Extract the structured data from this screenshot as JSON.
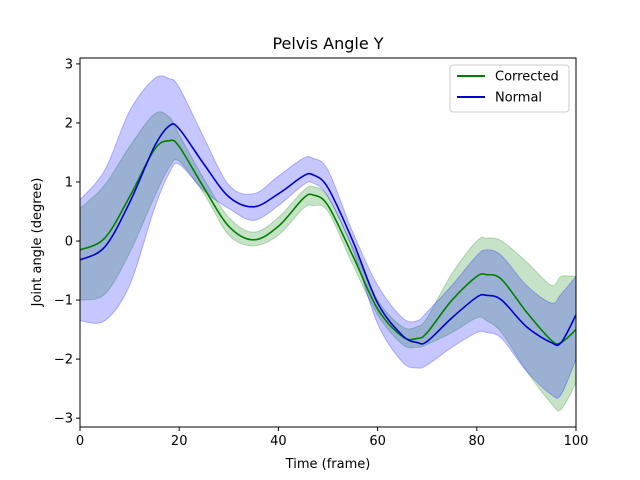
{
  "chart_data": {
    "type": "line",
    "title": "Pelvis Angle Y",
    "xlabel": "Time (frame)",
    "ylabel": "Joint angle (degree)",
    "xlim": [
      0,
      100
    ],
    "ylim": [
      -3.15,
      3.1
    ],
    "xticks": [
      0,
      20,
      40,
      60,
      80,
      100
    ],
    "yticks": [
      -3,
      -2,
      -1,
      0,
      1,
      2,
      3
    ],
    "grid": false,
    "legend_position": "top-right",
    "x": [
      0,
      5,
      10,
      15,
      18,
      20,
      25,
      30,
      35,
      40,
      45,
      47,
      50,
      55,
      60,
      65,
      68,
      70,
      75,
      80,
      82,
      85,
      90,
      95,
      97,
      100
    ],
    "series": [
      {
        "name": "Corrected",
        "color": "#008000",
        "band_color": "#008000",
        "mean": [
          -0.15,
          0.05,
          0.75,
          1.55,
          1.7,
          1.6,
          0.9,
          0.25,
          0.02,
          0.25,
          0.72,
          0.78,
          0.6,
          -0.25,
          -1.15,
          -1.62,
          -1.65,
          -1.55,
          -1.0,
          -0.6,
          -0.57,
          -0.65,
          -1.2,
          -1.68,
          -1.72,
          -1.5
        ],
        "lower": [
          -1.0,
          -0.9,
          -0.2,
          0.75,
          1.25,
          1.35,
          0.8,
          0.1,
          -0.08,
          0.1,
          0.55,
          0.6,
          0.5,
          -0.4,
          -1.25,
          -1.75,
          -1.8,
          -1.75,
          -1.55,
          -1.3,
          -1.35,
          -1.55,
          -2.2,
          -2.75,
          -2.85,
          -2.4
        ],
        "upper": [
          0.55,
          0.95,
          1.6,
          2.15,
          2.1,
          1.8,
          1.05,
          0.4,
          0.15,
          0.4,
          0.85,
          0.92,
          0.75,
          -0.1,
          -1.0,
          -1.45,
          -1.45,
          -1.3,
          -0.55,
          0.0,
          0.05,
          0.0,
          -0.35,
          -0.75,
          -0.6,
          -0.6
        ]
      },
      {
        "name": "Normal",
        "color": "#0000cd",
        "band_color": "#0000ff",
        "mean": [
          -0.32,
          -0.1,
          0.65,
          1.6,
          1.95,
          1.9,
          1.3,
          0.75,
          0.58,
          0.8,
          1.1,
          1.12,
          0.9,
          0.0,
          -1.05,
          -1.6,
          -1.72,
          -1.7,
          -1.3,
          -0.95,
          -0.92,
          -1.0,
          -1.45,
          -1.72,
          -1.72,
          -1.25
        ],
        "lower": [
          -1.35,
          -1.35,
          -0.75,
          0.55,
          1.15,
          1.3,
          0.85,
          0.55,
          0.35,
          0.6,
          0.95,
          0.98,
          0.75,
          -0.15,
          -1.4,
          -2.05,
          -2.15,
          -2.1,
          -1.8,
          -1.55,
          -1.55,
          -1.65,
          -2.2,
          -2.6,
          -2.6,
          -2.0
        ],
        "upper": [
          0.7,
          1.2,
          2.2,
          2.75,
          2.75,
          2.6,
          1.75,
          0.95,
          0.8,
          1.1,
          1.4,
          1.4,
          1.2,
          0.15,
          -0.75,
          -1.3,
          -1.35,
          -1.2,
          -0.75,
          -0.25,
          -0.15,
          -0.25,
          -0.75,
          -1.05,
          -0.9,
          -0.6
        ]
      }
    ]
  }
}
